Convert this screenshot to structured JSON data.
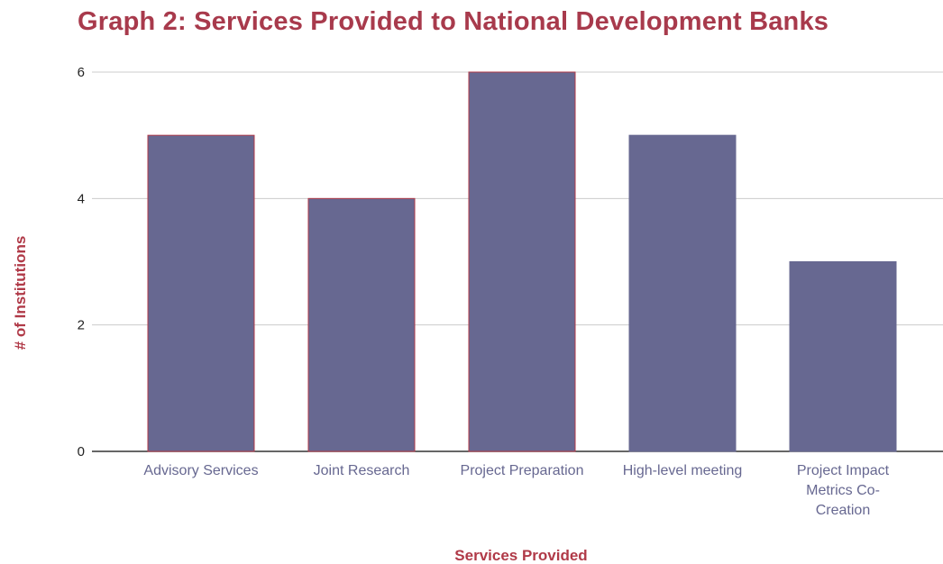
{
  "chart_data": {
    "type": "bar",
    "title": "Graph 2: Services Provided to National Development Banks",
    "xlabel": "Services Provided",
    "ylabel": "# of Institutions",
    "categories": [
      "Advisory Services",
      "Joint Research",
      "Project Preparation",
      "High-level meeting",
      "Project Impact Metrics Co-Creation"
    ],
    "category_label_lines": [
      [
        "Advisory Services"
      ],
      [
        "Joint Research"
      ],
      [
        "Project Preparation"
      ],
      [
        "High-level meeting"
      ],
      [
        "Project Impact",
        "Metrics Co-",
        "Creation"
      ]
    ],
    "values": [
      5,
      4,
      6,
      5,
      3
    ],
    "ylim": [
      0,
      6
    ],
    "yticks": [
      "0",
      "2",
      "4",
      "6"
    ],
    "grid": true,
    "legend": "none",
    "colors": {
      "bar": "#676891",
      "bar_outline": [
        "#b03a48",
        "#b03a48",
        "#b03a48",
        "#676891",
        "#676891"
      ],
      "title": "#a83a4c",
      "axis_title": "#b03a48",
      "category_label": "#676891",
      "gridline": "#cccccc",
      "baseline": "#333333"
    }
  }
}
